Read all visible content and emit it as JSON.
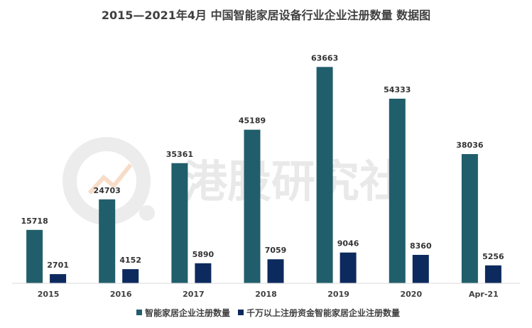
{
  "watermark": {
    "text": "港股研究社"
  },
  "chart_data": {
    "type": "bar",
    "title": "2015—2021年4月 中国智能家居设备行业企业注册数量 数据图",
    "categories": [
      "2015",
      "2016",
      "2017",
      "2018",
      "2019",
      "2020",
      "Apr-21"
    ],
    "series": [
      {
        "name": "智能家居企业注册数量",
        "values": [
          15718,
          24703,
          35361,
          45189,
          63663,
          54333,
          38036
        ],
        "color": "#215e6b"
      },
      {
        "name": "千万以上注册资金智能家居企业注册数量",
        "values": [
          2701,
          4152,
          5890,
          7059,
          9046,
          8360,
          5256
        ],
        "color": "#0d2a5f"
      }
    ],
    "ylim": [
      0,
      70000
    ],
    "grid": false,
    "legend_position": "bottom"
  }
}
